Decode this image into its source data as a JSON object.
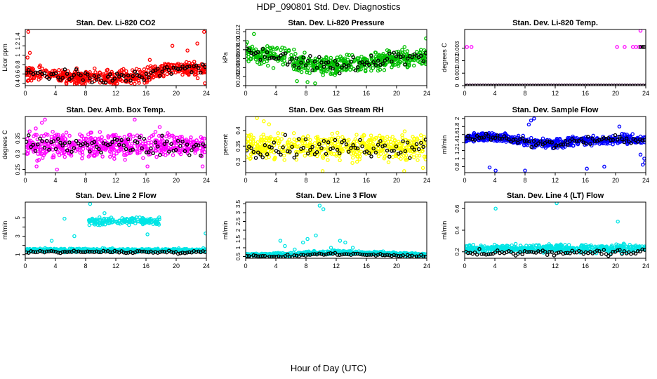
{
  "page": {
    "title": "HDP_090801  Std. Dev. Diagnostics",
    "xlabel": "Hour of Day (UTC)"
  },
  "chart_data": [
    {
      "id": "co2",
      "type": "scatter",
      "title": "Stan. Dev. Li-820 CO2",
      "ylabel": "Licor ppm",
      "color": "#ff0000",
      "xlim": [
        0,
        24
      ],
      "xticks": [
        0,
        4,
        8,
        12,
        16,
        20,
        24
      ],
      "ylim": [
        0.35,
        1.55
      ],
      "yticks": [
        0.4,
        0.6,
        0.8,
        1.0,
        1.2,
        1.4
      ],
      "trend": [
        [
          0,
          0.62
        ],
        [
          4,
          0.58
        ],
        [
          8,
          0.52
        ],
        [
          12,
          0.52
        ],
        [
          16,
          0.55
        ],
        [
          18,
          0.68
        ],
        [
          20,
          0.72
        ],
        [
          24,
          0.7
        ]
      ],
      "spread": 0.13,
      "outliers": [
        [
          0.4,
          1.5
        ],
        [
          0.6,
          1.05
        ],
        [
          0.3,
          0.95
        ],
        [
          16.5,
          0.9
        ],
        [
          19.5,
          1.2
        ],
        [
          21.5,
          1.1
        ],
        [
          22.8,
          1.25
        ],
        [
          23.7,
          1.5
        ],
        [
          23.8,
          0.4
        ]
      ]
    },
    {
      "id": "pressure",
      "type": "scatter",
      "title": "Stan. Dev. Li-820 Pressure",
      "ylabel": "kPa",
      "color": "#00c000",
      "xlim": [
        0,
        24
      ],
      "xticks": [
        0,
        4,
        8,
        12,
        16,
        20,
        24
      ],
      "ylim": [
        0,
        0.0125
      ],
      "yticks": [
        0.0,
        0.002,
        0.004,
        0.006,
        0.008,
        0.01,
        0.012
      ],
      "trend": [
        [
          0,
          0.0075
        ],
        [
          4,
          0.0065
        ],
        [
          8,
          0.005
        ],
        [
          12,
          0.0045
        ],
        [
          16,
          0.005
        ],
        [
          20,
          0.006
        ],
        [
          24,
          0.0065
        ]
      ],
      "spread": 0.0018,
      "outliers": [
        [
          1.1,
          0.0115
        ],
        [
          6.8,
          0.001
        ],
        [
          8.2,
          0.0008
        ],
        [
          9.2,
          0.0005
        ],
        [
          23.9,
          0.0105
        ]
      ]
    },
    {
      "id": "temp",
      "type": "scatter",
      "title": "Stan. Dev. Li-820 Temp.",
      "ylabel": "degrees C",
      "color": "#ff00ff",
      "xlim": [
        0,
        24
      ],
      "xticks": [
        0,
        4,
        8,
        12,
        16,
        20,
        24
      ],
      "ylim": [
        0,
        0.0045
      ],
      "yticks": [
        0.0,
        0.001,
        0.002,
        0.003
      ],
      "baseline": 0.0,
      "outliers": [
        [
          0.3,
          0.0031
        ],
        [
          0.9,
          0.0031
        ],
        [
          20.2,
          0.0031
        ],
        [
          21.2,
          0.0031
        ],
        [
          22.3,
          0.0031
        ],
        [
          22.7,
          0.0031
        ],
        [
          23.1,
          0.0031
        ],
        [
          23.3,
          0.0044
        ],
        [
          23.6,
          0.0031
        ]
      ],
      "black_outliers": [
        [
          23.3,
          0.0031
        ],
        [
          23.6,
          0.0031
        ],
        [
          23.8,
          0.0031
        ]
      ]
    },
    {
      "id": "ambbox",
      "type": "scatter",
      "title": "Stan. Dev. Amb. Box Temp.",
      "ylabel": "degrees C",
      "color": "#ff00ff",
      "xlim": [
        0,
        24
      ],
      "xticks": [
        0,
        4,
        8,
        12,
        16,
        20,
        24
      ],
      "ylim": [
        0.24,
        0.42
      ],
      "yticks": [
        0.25,
        0.3,
        0.35
      ],
      "trend": [
        [
          0,
          0.325
        ],
        [
          12,
          0.33
        ],
        [
          24,
          0.325
        ]
      ],
      "spread": 0.035,
      "outliers": [
        [
          2.2,
          0.4
        ],
        [
          2.6,
          0.41
        ],
        [
          14.5,
          0.41
        ],
        [
          4.2,
          0.25
        ],
        [
          16.2,
          0.26
        ],
        [
          23.5,
          0.26
        ],
        [
          1.5,
          0.26
        ]
      ]
    },
    {
      "id": "rh",
      "type": "scatter",
      "title": "Stan. Dev. Gas Stream RH",
      "ylabel": "percent",
      "color": "#ffff00",
      "xlim": [
        0,
        24
      ],
      "xticks": [
        0,
        4,
        8,
        12,
        16,
        20,
        24
      ],
      "ylim": [
        0.265,
        0.445
      ],
      "yticks": [
        0.3,
        0.35,
        0.4
      ],
      "trend": [
        [
          0,
          0.35
        ],
        [
          12,
          0.345
        ],
        [
          24,
          0.35
        ]
      ],
      "spread": 0.035,
      "outliers": [
        [
          1.5,
          0.44
        ],
        [
          2.4,
          0.43
        ],
        [
          3.1,
          0.42
        ],
        [
          10.2,
          0.27
        ],
        [
          21,
          0.27
        ],
        [
          23.5,
          0.28
        ]
      ]
    },
    {
      "id": "sampleflow",
      "type": "scatter",
      "title": "Stan. Dev. Sample Flow",
      "ylabel": "ml/min",
      "color": "#0000ff",
      "xlim": [
        0,
        24
      ],
      "xticks": [
        0,
        4,
        8,
        12,
        16,
        20,
        24
      ],
      "ylim": [
        0.65,
        2.05
      ],
      "yticks": [
        0.8,
        1.0,
        1.2,
        1.4,
        1.6,
        1.8,
        2.0
      ],
      "trend": [
        [
          0,
          1.5
        ],
        [
          3,
          1.55
        ],
        [
          6,
          1.5
        ],
        [
          9,
          1.4
        ],
        [
          12,
          1.35
        ],
        [
          15,
          1.45
        ],
        [
          18,
          1.45
        ],
        [
          21,
          1.5
        ],
        [
          24,
          1.45
        ]
      ],
      "spread": 0.1,
      "outliers": [
        [
          3.3,
          0.78
        ],
        [
          4.1,
          0.7
        ],
        [
          8,
          0.7
        ],
        [
          8.5,
          1.85
        ],
        [
          8.8,
          1.95
        ],
        [
          9.2,
          2.0
        ],
        [
          16.2,
          0.75
        ],
        [
          18.5,
          0.8
        ],
        [
          20.5,
          1.8
        ],
        [
          23.6,
          0.85
        ],
        [
          23.9,
          0.9
        ],
        [
          23.3,
          1.1
        ],
        [
          23.8,
          1.0
        ]
      ]
    },
    {
      "id": "line2",
      "type": "scatter",
      "title": "Stan. Dev. Line 2 Flow",
      "ylabel": "ml/min",
      "color": "#00e5e5",
      "xlim": [
        0,
        24
      ],
      "xticks": [
        0,
        4,
        8,
        12,
        16,
        20,
        24
      ],
      "ylim": [
        0.6,
        6.7
      ],
      "yticks": [
        1,
        2,
        3,
        4,
        5
      ],
      "ytick_labels": [
        "1",
        "",
        "3",
        "",
        "5"
      ],
      "trend": [
        [
          0,
          1.5
        ],
        [
          24,
          1.45
        ]
      ],
      "spread": 0.15,
      "high_cluster": {
        "x0": 8.2,
        "x1": 17.8,
        "y": 4.6,
        "spread": 0.35
      },
      "outliers": [
        [
          3.5,
          2.5
        ],
        [
          5.2,
          4.9
        ],
        [
          6.5,
          3.0
        ],
        [
          8.6,
          6.5
        ],
        [
          10.5,
          5.5
        ],
        [
          16.2,
          3.2
        ],
        [
          23.9,
          3.3
        ]
      ]
    },
    {
      "id": "line3",
      "type": "scatter",
      "title": "Stan. Dev. Line 3 Flow",
      "ylabel": "ml/min",
      "color": "#00e5e5",
      "xlim": [
        0,
        24
      ],
      "xticks": [
        0,
        4,
        8,
        12,
        16,
        20,
        24
      ],
      "ylim": [
        0.4,
        3.6
      ],
      "yticks": [
        0.5,
        1.0,
        1.5,
        2.0,
        2.5,
        3.0,
        3.5
      ],
      "trend": [
        [
          0,
          0.6
        ],
        [
          6,
          0.6
        ],
        [
          8,
          0.7
        ],
        [
          12,
          0.75
        ],
        [
          16,
          0.7
        ],
        [
          24,
          0.6
        ]
      ],
      "spread": 0.08,
      "outliers": [
        [
          4.6,
          1.4
        ],
        [
          5.2,
          1.1
        ],
        [
          6.5,
          0.9
        ],
        [
          7.6,
          1.3
        ],
        [
          8.2,
          1.5
        ],
        [
          9.3,
          1.7
        ],
        [
          9.8,
          3.4
        ],
        [
          10.3,
          3.2
        ],
        [
          11.3,
          1.0
        ],
        [
          12.5,
          1.4
        ],
        [
          13.2,
          1.3
        ],
        [
          14.2,
          1.0
        ]
      ]
    },
    {
      "id": "line4",
      "type": "scatter",
      "title": "Stan. Dev. Line 4 (LT) Flow",
      "ylabel": "ml/min",
      "color": "#00e5e5",
      "xlim": [
        0,
        24
      ],
      "xticks": [
        0,
        4,
        8,
        12,
        16,
        20,
        24
      ],
      "ylim": [
        0.14,
        0.66
      ],
      "yticks": [
        0.2,
        0.4,
        0.6
      ],
      "trend": [
        [
          0,
          0.23
        ],
        [
          24,
          0.23
        ]
      ],
      "spread": 0.03,
      "outliers": [
        [
          4.1,
          0.6
        ],
        [
          12.2,
          0.65
        ],
        [
          20.3,
          0.48
        ]
      ]
    }
  ]
}
